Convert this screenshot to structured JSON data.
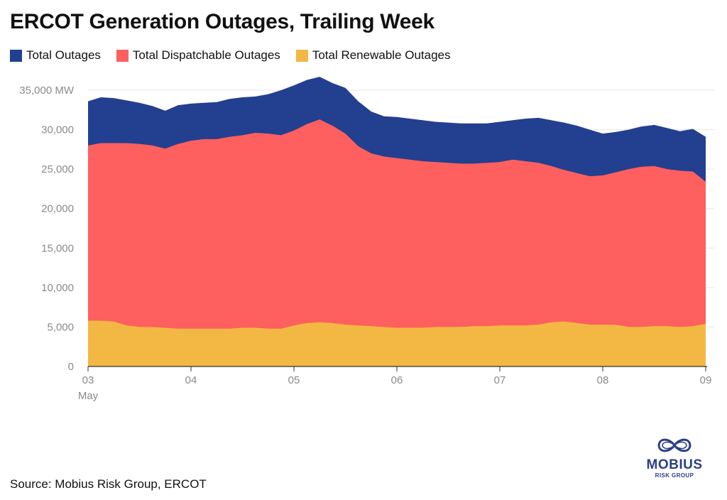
{
  "title": "ERCOT Generation Outages, Trailing Week",
  "legend": [
    {
      "label": "Total Outages",
      "color": "#233f8f"
    },
    {
      "label": "Total Dispatchable Outages",
      "color": "#fe5f5f"
    },
    {
      "label": "Total Renewable Outages",
      "color": "#f3b843"
    }
  ],
  "source": "Source: Mobius Risk Group, ERCOT",
  "logo": {
    "name": "MOBIUS",
    "subtitle": "RISK GROUP",
    "icon": "mobius-infinity-icon"
  },
  "chart_data": {
    "type": "area",
    "stacking": "overlay",
    "title": "ERCOT Generation Outages, Trailing Week",
    "xlabel": "",
    "ylabel": "MW",
    "ylim": [
      0,
      35000
    ],
    "yticks": [
      0,
      5000,
      10000,
      15000,
      20000,
      25000,
      30000,
      35000
    ],
    "ytick_labels": [
      "0",
      "5,000",
      "10,000",
      "15,000",
      "20,000",
      "25,000",
      "30,000",
      "35,000 MW"
    ],
    "xlim": [
      0,
      6
    ],
    "xticks": [
      0,
      1,
      2,
      3,
      4,
      5,
      6
    ],
    "xtick_labels": [
      "03",
      "04",
      "05",
      "06",
      "07",
      "08",
      "09"
    ],
    "xtick_sublabel": "May",
    "x": [
      0,
      0.125,
      0.25,
      0.375,
      0.5,
      0.625,
      0.75,
      0.875,
      1,
      1.125,
      1.25,
      1.375,
      1.5,
      1.625,
      1.75,
      1.875,
      2,
      2.125,
      2.25,
      2.375,
      2.5,
      2.625,
      2.75,
      2.875,
      3,
      3.125,
      3.25,
      3.375,
      3.5,
      3.625,
      3.75,
      3.875,
      4,
      4.125,
      4.25,
      4.375,
      4.5,
      4.625,
      4.75,
      4.875,
      5,
      5.125,
      5.25,
      5.375,
      5.5,
      5.625,
      5.75,
      5.875,
      6
    ],
    "series": [
      {
        "name": "Total Outages",
        "color": "#233f8f",
        "values": [
          33600,
          34100,
          34000,
          33700,
          33400,
          33000,
          32400,
          33100,
          33300,
          33400,
          33500,
          33900,
          34100,
          34200,
          34500,
          35000,
          35600,
          36300,
          36700,
          35900,
          35300,
          33600,
          32300,
          31700,
          31600,
          31400,
          31200,
          31000,
          30900,
          30800,
          30800,
          30800,
          31000,
          31200,
          31400,
          31500,
          31200,
          30900,
          30500,
          30000,
          29500,
          29700,
          30000,
          30400,
          30600,
          30200,
          29800,
          30100,
          29100
        ]
      },
      {
        "name": "Total Dispatchable Outages",
        "color": "#fe5f5f",
        "values": [
          28000,
          28300,
          28300,
          28300,
          28200,
          28000,
          27600,
          28200,
          28600,
          28800,
          28800,
          29100,
          29300,
          29600,
          29500,
          29300,
          29900,
          30700,
          31300,
          30500,
          29500,
          27900,
          27000,
          26600,
          26400,
          26200,
          26000,
          25900,
          25800,
          25700,
          25700,
          25800,
          25900,
          26200,
          26000,
          25800,
          25400,
          24900,
          24500,
          24100,
          24200,
          24600,
          25000,
          25300,
          25400,
          25000,
          24800,
          24700,
          23400
        ]
      },
      {
        "name": "Total Renewable Outages",
        "color": "#f3b843",
        "values": [
          5800,
          5800,
          5700,
          5200,
          5000,
          5000,
          4900,
          4800,
          4800,
          4800,
          4800,
          4800,
          4900,
          4900,
          4800,
          4800,
          5200,
          5500,
          5600,
          5500,
          5300,
          5200,
          5100,
          5000,
          4900,
          4900,
          4900,
          5000,
          5000,
          5000,
          5100,
          5100,
          5200,
          5200,
          5200,
          5300,
          5600,
          5700,
          5500,
          5300,
          5300,
          5300,
          5000,
          5000,
          5100,
          5100,
          5000,
          5100,
          5400
        ]
      }
    ]
  }
}
